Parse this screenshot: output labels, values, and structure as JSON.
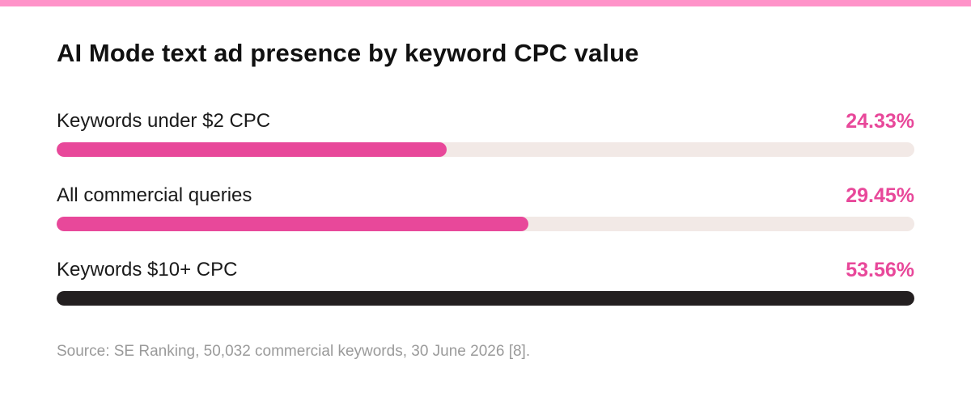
{
  "colors": {
    "accent_pink": "#e8489a",
    "top_bar": "#ff93c9",
    "track": "#f2e9e6",
    "dark_bar": "#231f20",
    "title_text": "#111111",
    "source_text": "#9a9a9a"
  },
  "chart_data": {
    "type": "bar",
    "orientation": "horizontal",
    "title": "AI Mode text ad presence by keyword CPC value",
    "categories": [
      "Keywords under $2 CPC",
      "All commercial queries",
      "Keywords $10+ CPC"
    ],
    "values": [
      24.33,
      29.45,
      53.56
    ],
    "value_labels": [
      "24.33%",
      "29.45%",
      "53.56%"
    ],
    "bar_colors": [
      "#e8489a",
      "#e8489a",
      "#231f20"
    ],
    "value_label_colors": [
      "#e8489a",
      "#e8489a",
      "#e8489a"
    ],
    "xlim": [
      0,
      53.56
    ],
    "grid": false,
    "legend": "none",
    "source": "Source: SE Ranking, 50,032 commercial keywords, 30 June 2026 [8]."
  }
}
